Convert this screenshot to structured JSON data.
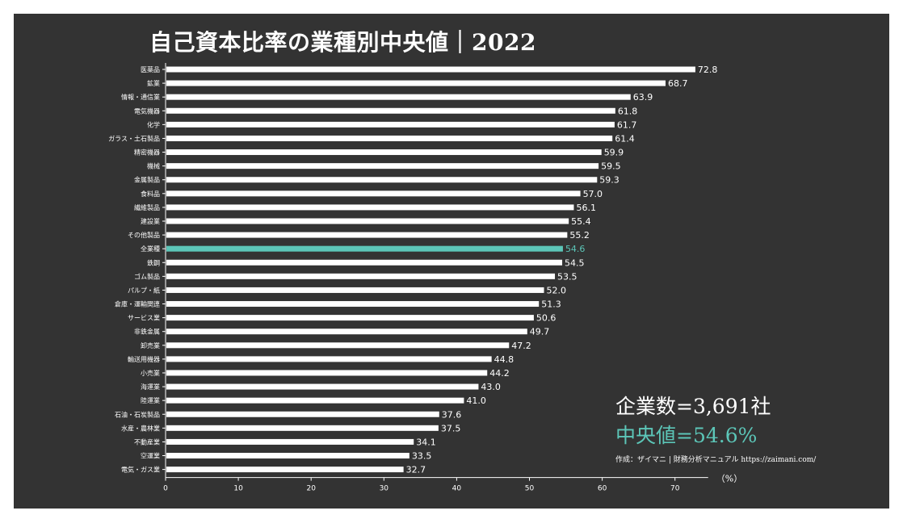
{
  "colors": {
    "background": "#333333",
    "bar": "#ffffff",
    "highlight": "#5cc6b8",
    "text": "#ffffff"
  },
  "stats": {
    "company_count": "企業数=3,691社",
    "median": "中央値=54.6%"
  },
  "credit": "作成：ザイマニ | 財務分析マニュアル https://zaimani.com/",
  "chart_data": {
    "type": "bar",
    "orientation": "horizontal",
    "title": "自己資本比率の業種別中央値｜2022",
    "xlabel": "（%）",
    "xlim": [
      0,
      75
    ],
    "xticks": [
      0,
      10,
      20,
      30,
      40,
      50,
      60,
      70
    ],
    "highlight_category": "全業種",
    "categories": [
      "医薬品",
      "鉱業",
      "情報・通信業",
      "電気機器",
      "化学",
      "ガラス・土石製品",
      "精密機器",
      "機械",
      "金属製品",
      "食料品",
      "繊維製品",
      "建設業",
      "その他製品",
      "全業種",
      "鉄鋼",
      "ゴム製品",
      "パルプ・紙",
      "倉庫・運輸関連",
      "サービス業",
      "非鉄金属",
      "卸売業",
      "輸送用機器",
      "小売業",
      "海運業",
      "陸運業",
      "石油・石炭製品",
      "水産・農林業",
      "不動産業",
      "空運業",
      "電気・ガス業"
    ],
    "values": [
      72.8,
      68.7,
      63.9,
      61.8,
      61.7,
      61.4,
      59.9,
      59.5,
      59.3,
      57.0,
      56.1,
      55.4,
      55.2,
      54.6,
      54.5,
      53.5,
      52.0,
      51.3,
      50.6,
      49.7,
      47.2,
      44.8,
      44.2,
      43.0,
      41.0,
      37.6,
      37.5,
      34.1,
      33.5,
      32.7
    ],
    "value_labels": [
      "72.8",
      "68.7",
      "63.9",
      "61.8",
      "61.7",
      "61.4",
      "59.9",
      "59.5",
      "59.3",
      "57.0",
      "56.1",
      "55.4",
      "55.2",
      "54.6",
      "54.5",
      "53.5",
      "52.0",
      "51.3",
      "50.6",
      "49.7",
      "47.2",
      "44.8",
      "44.2",
      "43.0",
      "41.0",
      "37.6",
      "37.5",
      "34.1",
      "33.5",
      "32.7"
    ]
  }
}
